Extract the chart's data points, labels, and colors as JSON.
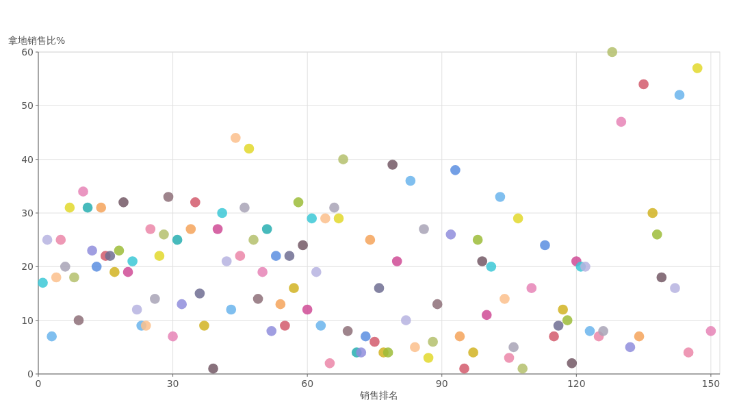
{
  "chart_data": {
    "type": "scatter",
    "xlabel": "销售排名",
    "ylabel": "拿地销售比%",
    "xlim": [
      0,
      152
    ],
    "ylim": [
      0,
      60
    ],
    "xticks": [
      0,
      30,
      60,
      90,
      120,
      150
    ],
    "yticks": [
      0,
      10,
      20,
      30,
      40,
      50,
      60
    ],
    "grid": true,
    "marker": "circle",
    "x": [
      1,
      2,
      3,
      4,
      5,
      6,
      7,
      8,
      9,
      10,
      11,
      12,
      13,
      14,
      15,
      16,
      17,
      18,
      19,
      20,
      21,
      22,
      23,
      24,
      25,
      26,
      27,
      28,
      29,
      30,
      31,
      32,
      34,
      35,
      36,
      37,
      39,
      40,
      41,
      42,
      43,
      44,
      45,
      46,
      47,
      48,
      49,
      50,
      51,
      52,
      53,
      54,
      55,
      56,
      57,
      58,
      59,
      60,
      61,
      62,
      63,
      64,
      65,
      66,
      67,
      68,
      69,
      71,
      72,
      73,
      74,
      75,
      76,
      77,
      78,
      79,
      80,
      82,
      83,
      84,
      86,
      87,
      88,
      89,
      92,
      93,
      94,
      95,
      97,
      98,
      99,
      100,
      101,
      103,
      104,
      105,
      106,
      107,
      108,
      110,
      113,
      115,
      116,
      117,
      118,
      119,
      120,
      121,
      122,
      123,
      125,
      126,
      128,
      130,
      132,
      134,
      135,
      137,
      138,
      139,
      142,
      143,
      145,
      147,
      150
    ],
    "values": [
      17,
      25,
      7,
      18,
      25,
      20,
      31,
      18,
      10,
      34,
      31,
      23,
      20,
      31,
      22,
      22,
      19,
      23,
      32,
      19,
      21,
      12,
      9,
      9,
      27,
      14,
      22,
      26,
      33,
      7,
      25,
      13,
      27,
      32,
      15,
      9,
      1,
      27,
      30,
      21,
      12,
      44,
      22,
      31,
      42,
      25,
      14,
      19,
      27,
      8,
      22,
      13,
      9,
      22,
      16,
      32,
      24,
      12,
      29,
      19,
      9,
      29,
      2,
      31,
      29,
      40,
      8,
      4,
      4,
      7,
      25,
      6,
      16,
      4,
      4,
      39,
      21,
      10,
      36,
      5,
      27,
      3,
      6,
      13,
      26,
      38,
      7,
      1,
      4,
      25,
      21,
      11,
      20,
      33,
      14,
      3,
      5,
      29,
      1,
      16,
      24,
      7,
      9,
      12,
      10,
      2,
      21,
      20,
      20,
      8,
      7,
      8,
      60,
      47,
      5,
      7,
      54,
      30,
      26,
      18,
      16,
      52,
      4,
      57,
      8
    ],
    "colors": [
      "#3cc8d6",
      "#b6b3e0",
      "#6ab4ec",
      "#fbbf8c",
      "#eb86a8",
      "#a8a3b6",
      "#e2d82c",
      "#b4c06c",
      "#8d6f78",
      "#e684b6",
      "#27aeb0",
      "#8f8ddc",
      "#5a8ee0",
      "#f5a35a",
      "#d25b6c",
      "#6e6d92",
      "#d1b322",
      "#9cbc38",
      "#735865",
      "#cf4b95",
      "#3cc8d6",
      "#b6b3e0",
      "#6ab4ec",
      "#fbbf8c",
      "#eb86a8",
      "#a8a3b6",
      "#e2d82c",
      "#b4c06c",
      "#8d6f78",
      "#e684b6",
      "#27aeb0",
      "#8f8ddc",
      "#f5a35a",
      "#d25b6c",
      "#6e6d92",
      "#d1b322",
      "#735865",
      "#cf4b95",
      "#3cc8d6",
      "#b6b3e0",
      "#6ab4ec",
      "#fbbf8c",
      "#eb86a8",
      "#a8a3b6",
      "#e2d82c",
      "#b4c06c",
      "#8d6f78",
      "#e684b6",
      "#27aeb0",
      "#8f8ddc",
      "#5a8ee0",
      "#f5a35a",
      "#d25b6c",
      "#6e6d92",
      "#d1b322",
      "#9cbc38",
      "#735865",
      "#cf4b95",
      "#3cc8d6",
      "#b6b3e0",
      "#6ab4ec",
      "#fbbf8c",
      "#eb86a8",
      "#a8a3b6",
      "#e2d82c",
      "#b4c06c",
      "#8d6f78",
      "#27aeb0",
      "#8f8ddc",
      "#5a8ee0",
      "#f5a35a",
      "#d25b6c",
      "#6e6d92",
      "#d1b322",
      "#9cbc38",
      "#735865",
      "#cf4b95",
      "#b6b3e0",
      "#6ab4ec",
      "#fbbf8c",
      "#a8a3b6",
      "#e2d82c",
      "#b4c06c",
      "#8d6f78",
      "#8f8ddc",
      "#5a8ee0",
      "#f5a35a",
      "#d25b6c",
      "#d1b322",
      "#9cbc38",
      "#735865",
      "#cf4b95",
      "#3cc8d6",
      "#6ab4ec",
      "#fbbf8c",
      "#eb86a8",
      "#a8a3b6",
      "#e2d82c",
      "#b4c06c",
      "#e684b6",
      "#5a8ee0",
      "#d25b6c",
      "#6e6d92",
      "#d1b322",
      "#9cbc38",
      "#735865",
      "#cf4b95",
      "#3cc8d6",
      "#b6b3e0",
      "#6ab4ec",
      "#eb86a8",
      "#a8a3b6",
      "#b4c06c",
      "#e684b6",
      "#8f8ddc",
      "#f5a35a",
      "#d25b6c",
      "#d1b322",
      "#9cbc38",
      "#735865",
      "#b6b3e0",
      "#6ab4ec",
      "#eb86a8",
      "#e2d82c",
      "#e684b6"
    ]
  }
}
